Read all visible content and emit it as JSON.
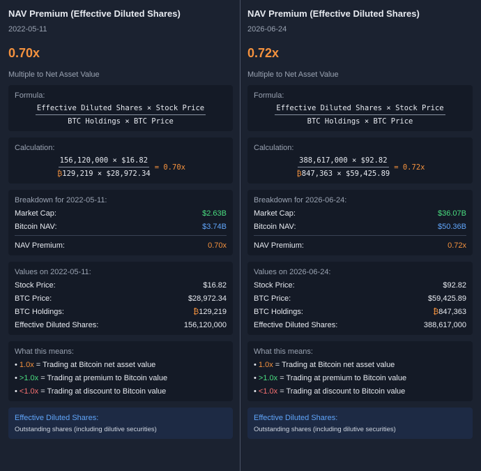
{
  "panels": [
    {
      "title": "NAV Premium (Effective Diluted Shares)",
      "date": "2022-05-11",
      "value": "0.70x",
      "subtitle": "Multiple to Net Asset Value",
      "formula": {
        "label": "Formula:",
        "numerator": "Effective Diluted Shares × Stock Price",
        "denominator": "BTC Holdings × BTC Price"
      },
      "calculation": {
        "label": "Calculation:",
        "numerator": "156,120,000 × $16.82",
        "denominator_symbol": "₿",
        "denominator": "129,219 × $28,972.34",
        "result": "= 0.70x"
      },
      "breakdown": {
        "title": "Breakdown for 2022-05-11:",
        "rows": [
          {
            "label": "Market Cap:",
            "value": "$2.63B",
            "color": "#4ade80"
          },
          {
            "label": "Bitcoin NAV:",
            "value": "$3.74B",
            "color": "#60a5fa"
          },
          {
            "label": "NAV Premium:",
            "value": "0.70x",
            "color": "#f5923e"
          }
        ]
      },
      "values": {
        "title": "Values on 2022-05-11:",
        "rows": [
          {
            "label": "Stock Price:",
            "value": "$16.82"
          },
          {
            "label": "BTC Price:",
            "value": "$28,972.34"
          },
          {
            "label": "BTC Holdings:",
            "symbol": "₿",
            "value": "129,219"
          },
          {
            "label": "Effective Diluted Shares:",
            "value": "156,120,000"
          }
        ]
      },
      "meaning": {
        "title": "What this means:",
        "items": [
          {
            "key": "1.0x",
            "color": "#f5923e",
            "text": "= Trading at Bitcoin net asset value"
          },
          {
            "key": ">1.0x",
            "color": "#4ade80",
            "text": "= Trading at premium to Bitcoin value"
          },
          {
            "key": "<1.0x",
            "color": "#f87171",
            "text": "= Trading at discount to Bitcoin value"
          }
        ]
      },
      "note": {
        "title": "Effective Diluted Shares:",
        "text": "Outstanding shares (including dilutive securities)"
      }
    },
    {
      "title": "NAV Premium (Effective Diluted Shares)",
      "date": "2026-06-24",
      "value": "0.72x",
      "subtitle": "Multiple to Net Asset Value",
      "formula": {
        "label": "Formula:",
        "numerator": "Effective Diluted Shares × Stock Price",
        "denominator": "BTC Holdings × BTC Price"
      },
      "calculation": {
        "label": "Calculation:",
        "numerator": "388,617,000 × $92.82",
        "denominator_symbol": "₿",
        "denominator": "847,363 × $59,425.89",
        "result": "= 0.72x"
      },
      "breakdown": {
        "title": "Breakdown for 2026-06-24:",
        "rows": [
          {
            "label": "Market Cap:",
            "value": "$36.07B",
            "color": "#4ade80"
          },
          {
            "label": "Bitcoin NAV:",
            "value": "$50.36B",
            "color": "#60a5fa"
          },
          {
            "label": "NAV Premium:",
            "value": "0.72x",
            "color": "#f5923e"
          }
        ]
      },
      "values": {
        "title": "Values on 2026-06-24:",
        "rows": [
          {
            "label": "Stock Price:",
            "value": "$92.82"
          },
          {
            "label": "BTC Price:",
            "value": "$59,425.89"
          },
          {
            "label": "BTC Holdings:",
            "symbol": "₿",
            "value": "847,363"
          },
          {
            "label": "Effective Diluted Shares:",
            "value": "388,617,000"
          }
        ]
      },
      "meaning": {
        "title": "What this means:",
        "items": [
          {
            "key": "1.0x",
            "color": "#f5923e",
            "text": "= Trading at Bitcoin net asset value"
          },
          {
            "key": ">1.0x",
            "color": "#4ade80",
            "text": "= Trading at premium to Bitcoin value"
          },
          {
            "key": "<1.0x",
            "color": "#f87171",
            "text": "= Trading at discount to Bitcoin value"
          }
        ]
      },
      "note": {
        "title": "Effective Diluted Shares:",
        "text": "Outstanding shares (including dilutive securities)"
      }
    }
  ]
}
